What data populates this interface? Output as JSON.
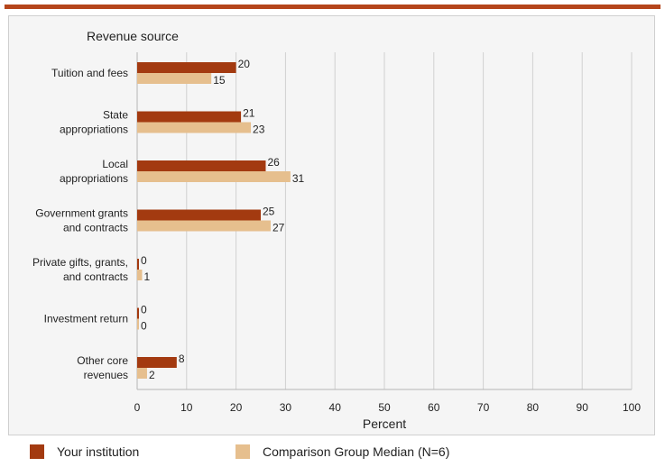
{
  "chart_data": {
    "type": "bar",
    "orientation": "horizontal",
    "y_axis_title": "Revenue source",
    "x_axis_title": "Percent",
    "xlim": [
      0,
      100
    ],
    "x_ticks": [
      0,
      10,
      20,
      30,
      40,
      50,
      60,
      70,
      80,
      90,
      100
    ],
    "categories": [
      [
        "Tuition and fees"
      ],
      [
        "State",
        "appropriations"
      ],
      [
        "Local",
        "appropriations"
      ],
      [
        "Government grants",
        "and contracts"
      ],
      [
        "Private gifts, grants,",
        "and contracts"
      ],
      [
        "Investment return"
      ],
      [
        "Other core",
        "revenues"
      ]
    ],
    "series": [
      {
        "name": "Your institution",
        "color": "#a33a10",
        "values": [
          20,
          21,
          26,
          25,
          0,
          0,
          8
        ]
      },
      {
        "name": "Comparison Group Median (N=6)",
        "color": "#e6bf8e",
        "values": [
          15,
          23,
          31,
          27,
          1,
          0,
          2
        ]
      }
    ],
    "grid": "vertical",
    "legend_position": "bottom"
  }
}
